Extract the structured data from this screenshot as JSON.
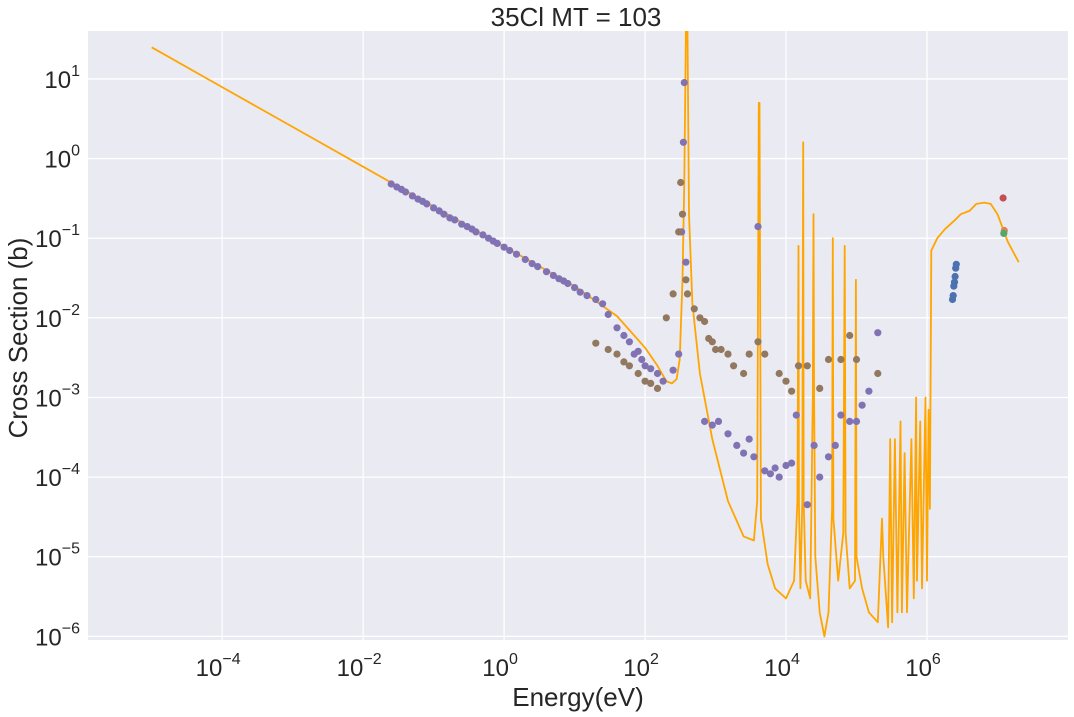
{
  "chart_data": {
    "type": "scatter",
    "title": "35Cl MT = 103",
    "xlabel": "Energy(eV)",
    "ylabel": "Cross Section (b)",
    "xscale": "log",
    "yscale": "log",
    "xlim": [
      1.25e-06,
      100000000
    ],
    "ylim": [
      9e-07,
      40
    ],
    "grid": true,
    "background": "#eaeaf2",
    "xticks": [
      {
        "base": "10",
        "exp": "−4",
        "value": 0.0001
      },
      {
        "base": "10",
        "exp": "−2",
        "value": 0.01
      },
      {
        "base": "10",
        "exp": "0",
        "value": 1
      },
      {
        "base": "10",
        "exp": "2",
        "value": 100
      },
      {
        "base": "10",
        "exp": "4",
        "value": 10000
      },
      {
        "base": "10",
        "exp": "6",
        "value": 1000000
      }
    ],
    "yticks": [
      {
        "base": "10",
        "exp": "1",
        "value": 10
      },
      {
        "base": "10",
        "exp": "0",
        "value": 1
      },
      {
        "base": "10",
        "exp": "−1",
        "value": 0.1
      },
      {
        "base": "10",
        "exp": "−2",
        "value": 0.01
      },
      {
        "base": "10",
        "exp": "−3",
        "value": 0.001
      },
      {
        "base": "10",
        "exp": "−4",
        "value": 0.0001
      },
      {
        "base": "10",
        "exp": "−5",
        "value": 1e-05
      },
      {
        "base": "10",
        "exp": "−6",
        "value": 1e-06
      }
    ],
    "series": [
      {
        "type": "line",
        "color": "#ffa500",
        "points": [
          [
            1e-05,
            25
          ],
          [
            0.0001,
            7.9
          ],
          [
            0.001,
            2.5
          ],
          [
            0.01,
            0.79
          ],
          [
            0.1,
            0.25
          ],
          [
            1,
            0.079
          ],
          [
            10,
            0.025
          ],
          [
            40,
            0.0105
          ],
          [
            100,
            0.0042
          ],
          [
            150,
            0.0025
          ],
          [
            200,
            0.0016
          ],
          [
            240,
            0.0015
          ],
          [
            280,
            0.0017
          ],
          [
            310,
            0.003
          ],
          [
            340,
            0.03
          ],
          [
            360,
            0.5
          ],
          [
            380,
            40
          ],
          [
            400,
            40
          ],
          [
            420,
            0.2
          ],
          [
            470,
            0.015
          ],
          [
            600,
            0.002
          ],
          [
            900,
            0.0003
          ],
          [
            1500,
            5e-05
          ],
          [
            2500,
            1.8e-05
          ],
          [
            3500,
            1.6e-05
          ],
          [
            3900,
            5e-05
          ],
          [
            4100,
            5
          ],
          [
            4200,
            5
          ],
          [
            4400,
            3e-05
          ],
          [
            5500,
            8e-06
          ],
          [
            7000,
            4e-06
          ],
          [
            10000,
            3e-06
          ],
          [
            13000,
            5e-06
          ],
          [
            14500,
            5e-05
          ],
          [
            15000,
            0.08
          ],
          [
            15200,
            5e-05
          ],
          [
            16000,
            4e-06
          ],
          [
            17000,
            5e-05
          ],
          [
            17500,
            1.6
          ],
          [
            17800,
            5e-05
          ],
          [
            19000,
            5e-06
          ],
          [
            22000,
            3e-06
          ],
          [
            24000,
            0.001
          ],
          [
            24500,
            0.2
          ],
          [
            25000,
            0.001
          ],
          [
            26000,
            1e-05
          ],
          [
            30000,
            2e-06
          ],
          [
            35000,
            1e-06
          ],
          [
            40000,
            2e-06
          ],
          [
            45000,
            4e-05
          ],
          [
            46000,
            0.1
          ],
          [
            47000,
            3e-05
          ],
          [
            55000,
            5e-06
          ],
          [
            65000,
            2e-05
          ],
          [
            68000,
            0.08
          ],
          [
            70000,
            2e-05
          ],
          [
            80000,
            4e-06
          ],
          [
            95000,
            5e-06
          ],
          [
            98000,
            0.03
          ],
          [
            100000,
            1e-05
          ],
          [
            120000,
            4e-06
          ],
          [
            150000,
            2e-06
          ],
          [
            200000,
            1.5e-06
          ],
          [
            230000,
            3e-05
          ],
          [
            240000,
            1e-05
          ],
          [
            280000,
            1.3e-06
          ],
          [
            300000,
            0.0003
          ],
          [
            320000,
            1.5e-06
          ],
          [
            350000,
            0.0003
          ],
          [
            380000,
            2e-06
          ],
          [
            420000,
            0.0005
          ],
          [
            440000,
            2e-06
          ],
          [
            480000,
            0.0002
          ],
          [
            520000,
            2e-06
          ],
          [
            600000,
            0.0003
          ],
          [
            650000,
            3e-06
          ],
          [
            700000,
            0.001
          ],
          [
            720000,
            5e-06
          ],
          [
            800000,
            0.0005
          ],
          [
            850000,
            4e-06
          ],
          [
            950000,
            0.001
          ],
          [
            1000000,
            5e-06
          ],
          [
            1050000,
            0.0007
          ],
          [
            1100000,
            4e-05
          ],
          [
            1150000,
            0.07
          ],
          [
            1400000,
            0.1
          ],
          [
            1800000,
            0.13
          ],
          [
            2500000,
            0.17
          ],
          [
            3000000,
            0.2
          ],
          [
            4000000,
            0.22
          ],
          [
            5000000,
            0.27
          ],
          [
            6500000,
            0.28
          ],
          [
            8000000,
            0.27
          ],
          [
            10000000,
            0.2
          ],
          [
            14000000,
            0.09
          ],
          [
            20000000,
            0.05
          ]
        ]
      },
      {
        "type": "scatter",
        "color": "#8172b3",
        "points": [
          [
            0.025,
            0.48
          ],
          [
            0.03,
            0.44
          ],
          [
            0.035,
            0.41
          ],
          [
            0.04,
            0.38
          ],
          [
            0.05,
            0.34
          ],
          [
            0.06,
            0.31
          ],
          [
            0.07,
            0.29
          ],
          [
            0.08,
            0.27
          ],
          [
            0.1,
            0.24
          ],
          [
            0.12,
            0.22
          ],
          [
            0.14,
            0.2
          ],
          [
            0.17,
            0.18
          ],
          [
            0.2,
            0.17
          ],
          [
            0.25,
            0.15
          ],
          [
            0.3,
            0.14
          ],
          [
            0.35,
            0.13
          ],
          [
            0.4,
            0.12
          ],
          [
            0.5,
            0.11
          ],
          [
            0.6,
            0.1
          ],
          [
            0.7,
            0.092
          ],
          [
            0.8,
            0.086
          ],
          [
            1,
            0.077
          ],
          [
            1.2,
            0.07
          ],
          [
            1.5,
            0.063
          ],
          [
            2,
            0.054
          ],
          [
            2.5,
            0.048
          ],
          [
            3,
            0.044
          ],
          [
            4,
            0.038
          ],
          [
            5,
            0.034
          ],
          [
            6,
            0.031
          ],
          [
            7,
            0.029
          ],
          [
            8,
            0.027
          ],
          [
            10,
            0.024
          ],
          [
            12,
            0.021
          ],
          [
            15,
            0.019
          ],
          [
            20,
            0.017
          ],
          [
            25,
            0.015
          ],
          [
            30,
            0.011
          ],
          [
            40,
            0.0075
          ],
          [
            50,
            0.006
          ],
          [
            60,
            0.005
          ],
          [
            70,
            0.0035
          ],
          [
            80,
            0.0038
          ],
          [
            90,
            0.003
          ],
          [
            100,
            0.0025
          ],
          [
            120,
            0.0023
          ],
          [
            150,
            0.002
          ],
          [
            180,
            0.0016
          ],
          [
            250,
            0.0022
          ],
          [
            300,
            0.0035
          ],
          [
            330,
            0.12
          ],
          [
            350,
            1.6
          ],
          [
            360,
            9
          ],
          [
            380,
            0.05
          ],
          [
            700,
            0.0005
          ],
          [
            900,
            0.00045
          ],
          [
            1100,
            0.0005
          ],
          [
            1500,
            0.00035
          ],
          [
            2000,
            0.00025
          ],
          [
            2500,
            0.0002
          ],
          [
            3000,
            0.0003
          ],
          [
            3500,
            0.00018
          ],
          [
            4000,
            0.14
          ],
          [
            5000,
            0.00012
          ],
          [
            6000,
            0.00011
          ],
          [
            7000,
            0.00013
          ],
          [
            8000,
            0.0001
          ],
          [
            10000,
            0.00014
          ],
          [
            12000,
            0.00015
          ],
          [
            14000,
            0.0006
          ],
          [
            20000,
            4.5e-05
          ],
          [
            25000,
            0.00025
          ],
          [
            30000,
            0.0001
          ],
          [
            40000,
            0.00018
          ],
          [
            50000,
            0.00025
          ],
          [
            60000,
            0.0006
          ],
          [
            80000,
            0.0005
          ],
          [
            100000,
            0.0005
          ],
          [
            120000,
            0.0008
          ],
          [
            150000,
            0.0012
          ],
          [
            200000,
            0.0065
          ]
        ]
      },
      {
        "type": "scatter",
        "color": "#937860",
        "points": [
          [
            20,
            0.0048
          ],
          [
            30,
            0.004
          ],
          [
            40,
            0.0035
          ],
          [
            50,
            0.0028
          ],
          [
            60,
            0.0025
          ],
          [
            80,
            0.002
          ],
          [
            100,
            0.0016
          ],
          [
            120,
            0.0015
          ],
          [
            150,
            0.0013
          ],
          [
            200,
            0.01
          ],
          [
            250,
            0.02
          ],
          [
            300,
            0.12
          ],
          [
            320,
            0.5
          ],
          [
            340,
            0.2
          ],
          [
            380,
            0.03
          ],
          [
            400,
            0.02
          ],
          [
            500,
            0.013
          ],
          [
            600,
            0.01
          ],
          [
            700,
            0.009
          ],
          [
            800,
            0.0055
          ],
          [
            900,
            0.005
          ],
          [
            1000,
            0.004
          ],
          [
            1200,
            0.004
          ],
          [
            1500,
            0.0035
          ],
          [
            1800,
            0.0025
          ],
          [
            2500,
            0.002
          ],
          [
            3000,
            0.0035
          ],
          [
            4000,
            0.005
          ],
          [
            5000,
            0.0035
          ],
          [
            8000,
            0.002
          ],
          [
            10000,
            0.0016
          ],
          [
            12000,
            0.0012
          ],
          [
            15000,
            0.0025
          ],
          [
            20000,
            0.0025
          ],
          [
            30000,
            0.0013
          ],
          [
            40000,
            0.003
          ],
          [
            60000,
            0.003
          ],
          [
            80000,
            0.006
          ],
          [
            100000,
            0.003
          ],
          [
            200000,
            0.002
          ]
        ]
      },
      {
        "type": "scatter",
        "color": "#4c72b0",
        "points": [
          [
            2300000,
            0.017
          ],
          [
            2350000,
            0.019
          ],
          [
            2400000,
            0.025
          ],
          [
            2450000,
            0.028
          ],
          [
            2500000,
            0.033
          ],
          [
            2550000,
            0.042
          ],
          [
            2600000,
            0.047
          ]
        ]
      },
      {
        "type": "scatter",
        "color": "#c44e52",
        "points": [
          [
            12000000,
            0.32
          ]
        ]
      },
      {
        "type": "scatter",
        "color": "#dd8452",
        "points": [
          [
            12500000,
            0.125
          ]
        ]
      },
      {
        "type": "scatter",
        "color": "#55a868",
        "points": [
          [
            12300000,
            0.115
          ]
        ]
      }
    ]
  }
}
